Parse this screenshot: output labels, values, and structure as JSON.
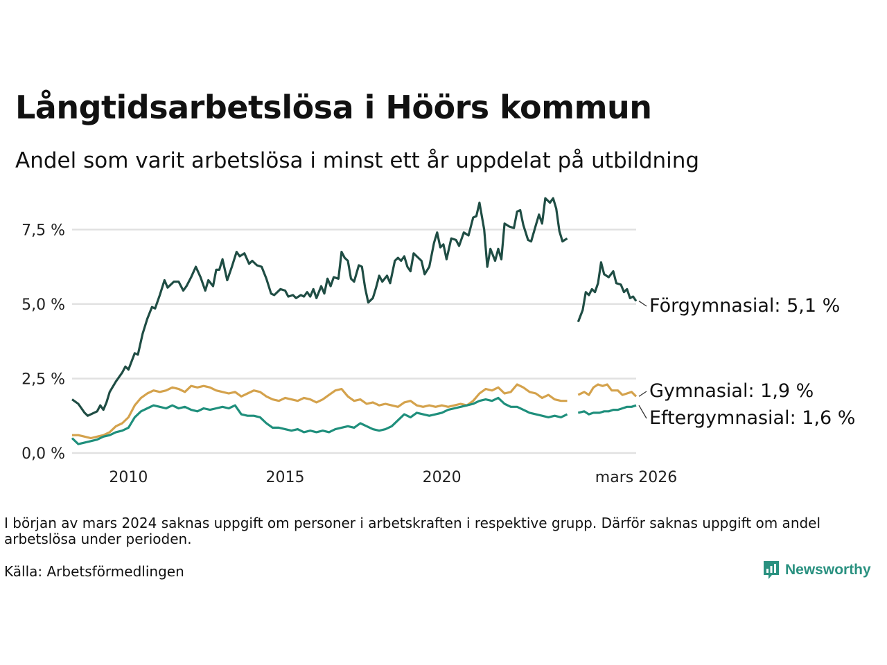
{
  "title": "Långtidsarbetslösa i Höörs kommun",
  "subtitle": "Andel som varit arbetslösa i minst ett år uppdelat på utbildning",
  "note": "I början av mars 2024 saknas uppgift om personer i arbetskraften i respektive grupp. Därför saknas uppgift om andel arbetslösa under perioden.",
  "source": "Källa: Arbetsförmedlingen",
  "brand": "Newsworthy",
  "colors": {
    "forgymnasial": "#1f4d44",
    "gymnasial": "#d4a24c",
    "eftergymnasial": "#1f8f7c",
    "grid": "#e1e1e1",
    "brand": "#2a9180"
  },
  "chart_data": {
    "type": "line",
    "title": "Långtidsarbetslösa i Höörs kommun",
    "xlabel": "",
    "ylabel": "",
    "xlim": [
      2008.2,
      2026.2
    ],
    "ylim": [
      0,
      8.6
    ],
    "yticks": [
      {
        "value": 0,
        "label": "0,0 %"
      },
      {
        "value": 2.5,
        "label": "2,5 %"
      },
      {
        "value": 5,
        "label": "5,0 %"
      },
      {
        "value": 7.5,
        "label": "7,5 %"
      }
    ],
    "xticks": [
      {
        "value": 2010,
        "label": "2010"
      },
      {
        "value": 2015,
        "label": "2015"
      },
      {
        "value": 2020,
        "label": "2020"
      },
      {
        "value": 2026.2,
        "label": "mars 2026"
      }
    ],
    "gap": [
      2024.0,
      2024.35
    ],
    "series": [
      {
        "key": "forgymnasial",
        "name": "Förgymnasial",
        "end_label": "Förgymnasial: 5,1 %",
        "points": [
          [
            2008.2,
            1.8
          ],
          [
            2008.4,
            1.65
          ],
          [
            2008.6,
            1.35
          ],
          [
            2008.7,
            1.25
          ],
          [
            2008.9,
            1.35
          ],
          [
            2009.0,
            1.4
          ],
          [
            2009.1,
            1.6
          ],
          [
            2009.2,
            1.45
          ],
          [
            2009.3,
            1.7
          ],
          [
            2009.4,
            2.05
          ],
          [
            2009.6,
            2.4
          ],
          [
            2009.8,
            2.7
          ],
          [
            2009.9,
            2.9
          ],
          [
            2010.0,
            2.8
          ],
          [
            2010.2,
            3.35
          ],
          [
            2010.3,
            3.3
          ],
          [
            2010.45,
            4.0
          ],
          [
            2010.6,
            4.5
          ],
          [
            2010.75,
            4.9
          ],
          [
            2010.85,
            4.85
          ],
          [
            2011.0,
            5.3
          ],
          [
            2011.15,
            5.8
          ],
          [
            2011.25,
            5.55
          ],
          [
            2011.45,
            5.75
          ],
          [
            2011.6,
            5.75
          ],
          [
            2011.75,
            5.45
          ],
          [
            2011.85,
            5.6
          ],
          [
            2012.0,
            5.9
          ],
          [
            2012.15,
            6.25
          ],
          [
            2012.3,
            5.9
          ],
          [
            2012.45,
            5.45
          ],
          [
            2012.55,
            5.8
          ],
          [
            2012.7,
            5.6
          ],
          [
            2012.8,
            6.15
          ],
          [
            2012.9,
            6.15
          ],
          [
            2013.0,
            6.5
          ],
          [
            2013.15,
            5.8
          ],
          [
            2013.3,
            6.25
          ],
          [
            2013.45,
            6.75
          ],
          [
            2013.55,
            6.6
          ],
          [
            2013.7,
            6.7
          ],
          [
            2013.85,
            6.35
          ],
          [
            2013.95,
            6.45
          ],
          [
            2014.1,
            6.3
          ],
          [
            2014.25,
            6.25
          ],
          [
            2014.4,
            5.85
          ],
          [
            2014.55,
            5.35
          ],
          [
            2014.65,
            5.3
          ],
          [
            2014.85,
            5.5
          ],
          [
            2015.0,
            5.45
          ],
          [
            2015.1,
            5.25
          ],
          [
            2015.25,
            5.3
          ],
          [
            2015.35,
            5.2
          ],
          [
            2015.5,
            5.3
          ],
          [
            2015.6,
            5.25
          ],
          [
            2015.7,
            5.4
          ],
          [
            2015.8,
            5.25
          ],
          [
            2015.9,
            5.5
          ],
          [
            2016.0,
            5.2
          ],
          [
            2016.15,
            5.6
          ],
          [
            2016.25,
            5.35
          ],
          [
            2016.35,
            5.85
          ],
          [
            2016.45,
            5.6
          ],
          [
            2016.55,
            5.9
          ],
          [
            2016.7,
            5.85
          ],
          [
            2016.8,
            6.75
          ],
          [
            2016.9,
            6.55
          ],
          [
            2017.0,
            6.45
          ],
          [
            2017.1,
            5.85
          ],
          [
            2017.2,
            5.75
          ],
          [
            2017.35,
            6.3
          ],
          [
            2017.45,
            6.25
          ],
          [
            2017.55,
            5.55
          ],
          [
            2017.65,
            5.05
          ],
          [
            2017.8,
            5.2
          ],
          [
            2017.9,
            5.55
          ],
          [
            2018.0,
            5.95
          ],
          [
            2018.1,
            5.75
          ],
          [
            2018.25,
            5.95
          ],
          [
            2018.35,
            5.7
          ],
          [
            2018.5,
            6.45
          ],
          [
            2018.6,
            6.55
          ],
          [
            2018.7,
            6.45
          ],
          [
            2018.8,
            6.6
          ],
          [
            2018.9,
            6.25
          ],
          [
            2019.0,
            6.1
          ],
          [
            2019.1,
            6.7
          ],
          [
            2019.2,
            6.6
          ],
          [
            2019.35,
            6.45
          ],
          [
            2019.45,
            6.0
          ],
          [
            2019.6,
            6.25
          ],
          [
            2019.75,
            7.05
          ],
          [
            2019.85,
            7.4
          ],
          [
            2019.95,
            6.9
          ],
          [
            2020.05,
            7.0
          ],
          [
            2020.15,
            6.5
          ],
          [
            2020.3,
            7.2
          ],
          [
            2020.45,
            7.15
          ],
          [
            2020.55,
            6.95
          ],
          [
            2020.7,
            7.4
          ],
          [
            2020.85,
            7.3
          ],
          [
            2021.0,
            7.9
          ],
          [
            2021.1,
            7.95
          ],
          [
            2021.2,
            8.4
          ],
          [
            2021.35,
            7.5
          ],
          [
            2021.45,
            6.25
          ],
          [
            2021.55,
            6.85
          ],
          [
            2021.7,
            6.45
          ],
          [
            2021.8,
            6.85
          ],
          [
            2021.9,
            6.5
          ],
          [
            2022.0,
            7.7
          ],
          [
            2022.15,
            7.6
          ],
          [
            2022.3,
            7.55
          ],
          [
            2022.4,
            8.1
          ],
          [
            2022.5,
            8.15
          ],
          [
            2022.6,
            7.65
          ],
          [
            2022.75,
            7.15
          ],
          [
            2022.85,
            7.1
          ],
          [
            2023.0,
            7.65
          ],
          [
            2023.1,
            8.0
          ],
          [
            2023.2,
            7.7
          ],
          [
            2023.3,
            8.55
          ],
          [
            2023.45,
            8.4
          ],
          [
            2023.55,
            8.55
          ],
          [
            2023.65,
            8.2
          ],
          [
            2023.75,
            7.45
          ],
          [
            2023.85,
            7.1
          ],
          [
            2024.0,
            7.2
          ]
        ]
      },
      {
        "key": "gymnasial",
        "name": "Gymnasial",
        "end_label": "Gymnasial: 1,9 %",
        "points": [
          [
            2008.2,
            0.6
          ],
          [
            2008.4,
            0.6
          ],
          [
            2008.6,
            0.55
          ],
          [
            2008.8,
            0.5
          ],
          [
            2009.0,
            0.55
          ],
          [
            2009.2,
            0.6
          ],
          [
            2009.4,
            0.7
          ],
          [
            2009.6,
            0.9
          ],
          [
            2009.8,
            1.0
          ],
          [
            2010.0,
            1.2
          ],
          [
            2010.2,
            1.6
          ],
          [
            2010.4,
            1.85
          ],
          [
            2010.6,
            2.0
          ],
          [
            2010.8,
            2.1
          ],
          [
            2011.0,
            2.05
          ],
          [
            2011.2,
            2.1
          ],
          [
            2011.4,
            2.2
          ],
          [
            2011.6,
            2.15
          ],
          [
            2011.8,
            2.05
          ],
          [
            2012.0,
            2.25
          ],
          [
            2012.2,
            2.2
          ],
          [
            2012.4,
            2.25
          ],
          [
            2012.6,
            2.2
          ],
          [
            2012.8,
            2.1
          ],
          [
            2013.0,
            2.05
          ],
          [
            2013.2,
            2.0
          ],
          [
            2013.4,
            2.05
          ],
          [
            2013.6,
            1.9
          ],
          [
            2013.8,
            2.0
          ],
          [
            2014.0,
            2.1
          ],
          [
            2014.2,
            2.05
          ],
          [
            2014.4,
            1.9
          ],
          [
            2014.6,
            1.8
          ],
          [
            2014.8,
            1.75
          ],
          [
            2015.0,
            1.85
          ],
          [
            2015.2,
            1.8
          ],
          [
            2015.4,
            1.75
          ],
          [
            2015.6,
            1.85
          ],
          [
            2015.8,
            1.8
          ],
          [
            2016.0,
            1.7
          ],
          [
            2016.2,
            1.8
          ],
          [
            2016.4,
            1.95
          ],
          [
            2016.6,
            2.1
          ],
          [
            2016.8,
            2.15
          ],
          [
            2017.0,
            1.9
          ],
          [
            2017.2,
            1.75
          ],
          [
            2017.4,
            1.8
          ],
          [
            2017.6,
            1.65
          ],
          [
            2017.8,
            1.7
          ],
          [
            2018.0,
            1.6
          ],
          [
            2018.2,
            1.65
          ],
          [
            2018.4,
            1.6
          ],
          [
            2018.6,
            1.55
          ],
          [
            2018.8,
            1.7
          ],
          [
            2019.0,
            1.75
          ],
          [
            2019.2,
            1.6
          ],
          [
            2019.4,
            1.55
          ],
          [
            2019.6,
            1.6
          ],
          [
            2019.8,
            1.55
          ],
          [
            2020.0,
            1.6
          ],
          [
            2020.2,
            1.55
          ],
          [
            2020.4,
            1.6
          ],
          [
            2020.6,
            1.65
          ],
          [
            2020.8,
            1.6
          ],
          [
            2021.0,
            1.75
          ],
          [
            2021.2,
            2.0
          ],
          [
            2021.4,
            2.15
          ],
          [
            2021.6,
            2.1
          ],
          [
            2021.8,
            2.2
          ],
          [
            2022.0,
            2.0
          ],
          [
            2022.2,
            2.05
          ],
          [
            2022.4,
            2.3
          ],
          [
            2022.6,
            2.2
          ],
          [
            2022.8,
            2.05
          ],
          [
            2023.0,
            2.0
          ],
          [
            2023.2,
            1.85
          ],
          [
            2023.4,
            1.95
          ],
          [
            2023.6,
            1.8
          ],
          [
            2023.8,
            1.75
          ],
          [
            2024.0,
            1.75
          ]
        ]
      },
      {
        "key": "eftergymnasial",
        "name": "Eftergymnasial",
        "end_label": "Eftergymnasial: 1,6 %",
        "points": [
          [
            2008.2,
            0.5
          ],
          [
            2008.4,
            0.3
          ],
          [
            2008.6,
            0.35
          ],
          [
            2008.8,
            0.4
          ],
          [
            2009.0,
            0.45
          ],
          [
            2009.2,
            0.55
          ],
          [
            2009.4,
            0.6
          ],
          [
            2009.6,
            0.7
          ],
          [
            2009.8,
            0.75
          ],
          [
            2010.0,
            0.85
          ],
          [
            2010.2,
            1.2
          ],
          [
            2010.4,
            1.4
          ],
          [
            2010.6,
            1.5
          ],
          [
            2010.8,
            1.6
          ],
          [
            2011.0,
            1.55
          ],
          [
            2011.2,
            1.5
          ],
          [
            2011.4,
            1.6
          ],
          [
            2011.6,
            1.5
          ],
          [
            2011.8,
            1.55
          ],
          [
            2012.0,
            1.45
          ],
          [
            2012.2,
            1.4
          ],
          [
            2012.4,
            1.5
          ],
          [
            2012.6,
            1.45
          ],
          [
            2012.8,
            1.5
          ],
          [
            2013.0,
            1.55
          ],
          [
            2013.2,
            1.5
          ],
          [
            2013.4,
            1.6
          ],
          [
            2013.6,
            1.3
          ],
          [
            2013.8,
            1.25
          ],
          [
            2014.0,
            1.25
          ],
          [
            2014.2,
            1.2
          ],
          [
            2014.4,
            1.0
          ],
          [
            2014.6,
            0.85
          ],
          [
            2014.8,
            0.85
          ],
          [
            2015.0,
            0.8
          ],
          [
            2015.2,
            0.75
          ],
          [
            2015.4,
            0.8
          ],
          [
            2015.6,
            0.7
          ],
          [
            2015.8,
            0.75
          ],
          [
            2016.0,
            0.7
          ],
          [
            2016.2,
            0.75
          ],
          [
            2016.4,
            0.7
          ],
          [
            2016.6,
            0.8
          ],
          [
            2016.8,
            0.85
          ],
          [
            2017.0,
            0.9
          ],
          [
            2017.2,
            0.85
          ],
          [
            2017.4,
            1.0
          ],
          [
            2017.6,
            0.9
          ],
          [
            2017.8,
            0.8
          ],
          [
            2018.0,
            0.75
          ],
          [
            2018.2,
            0.8
          ],
          [
            2018.4,
            0.9
          ],
          [
            2018.6,
            1.1
          ],
          [
            2018.8,
            1.3
          ],
          [
            2019.0,
            1.2
          ],
          [
            2019.2,
            1.35
          ],
          [
            2019.4,
            1.3
          ],
          [
            2019.6,
            1.25
          ],
          [
            2019.8,
            1.3
          ],
          [
            2020.0,
            1.35
          ],
          [
            2020.2,
            1.45
          ],
          [
            2020.4,
            1.5
          ],
          [
            2020.6,
            1.55
          ],
          [
            2020.8,
            1.6
          ],
          [
            2021.0,
            1.65
          ],
          [
            2021.2,
            1.75
          ],
          [
            2021.4,
            1.8
          ],
          [
            2021.6,
            1.75
          ],
          [
            2021.8,
            1.85
          ],
          [
            2022.0,
            1.65
          ],
          [
            2022.2,
            1.55
          ],
          [
            2022.4,
            1.55
          ],
          [
            2022.6,
            1.45
          ],
          [
            2022.8,
            1.35
          ],
          [
            2023.0,
            1.3
          ],
          [
            2023.2,
            1.25
          ],
          [
            2023.4,
            1.2
          ],
          [
            2023.6,
            1.25
          ],
          [
            2023.8,
            1.2
          ],
          [
            2024.0,
            1.3
          ]
        ]
      }
    ]
  }
}
